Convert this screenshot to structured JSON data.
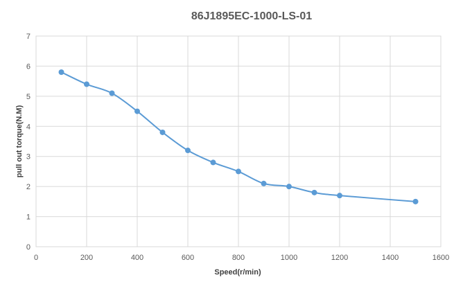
{
  "chart_data": {
    "type": "scatter",
    "title": "86J1895EC-1000-LS-01",
    "xlabel": "Speed(r/min)",
    "ylabel": "pull out torque(N.M)",
    "xlim": [
      0,
      1600
    ],
    "ylim": [
      0,
      7
    ],
    "xticks": [
      0,
      200,
      400,
      600,
      800,
      1000,
      1200,
      1400,
      1600
    ],
    "yticks": [
      0,
      1,
      2,
      3,
      4,
      5,
      6,
      7
    ],
    "grid": true,
    "smooth": true,
    "markers": true,
    "series": [
      {
        "x": [
          100,
          200,
          300,
          400,
          500,
          600,
          700,
          800,
          900,
          1000,
          1100,
          1200,
          1500
        ],
        "y": [
          5.8,
          5.4,
          5.1,
          4.5,
          3.8,
          3.2,
          2.8,
          2.5,
          2.1,
          2.0,
          1.8,
          1.7,
          1.5
        ],
        "color": "#5b9bd5"
      }
    ]
  }
}
